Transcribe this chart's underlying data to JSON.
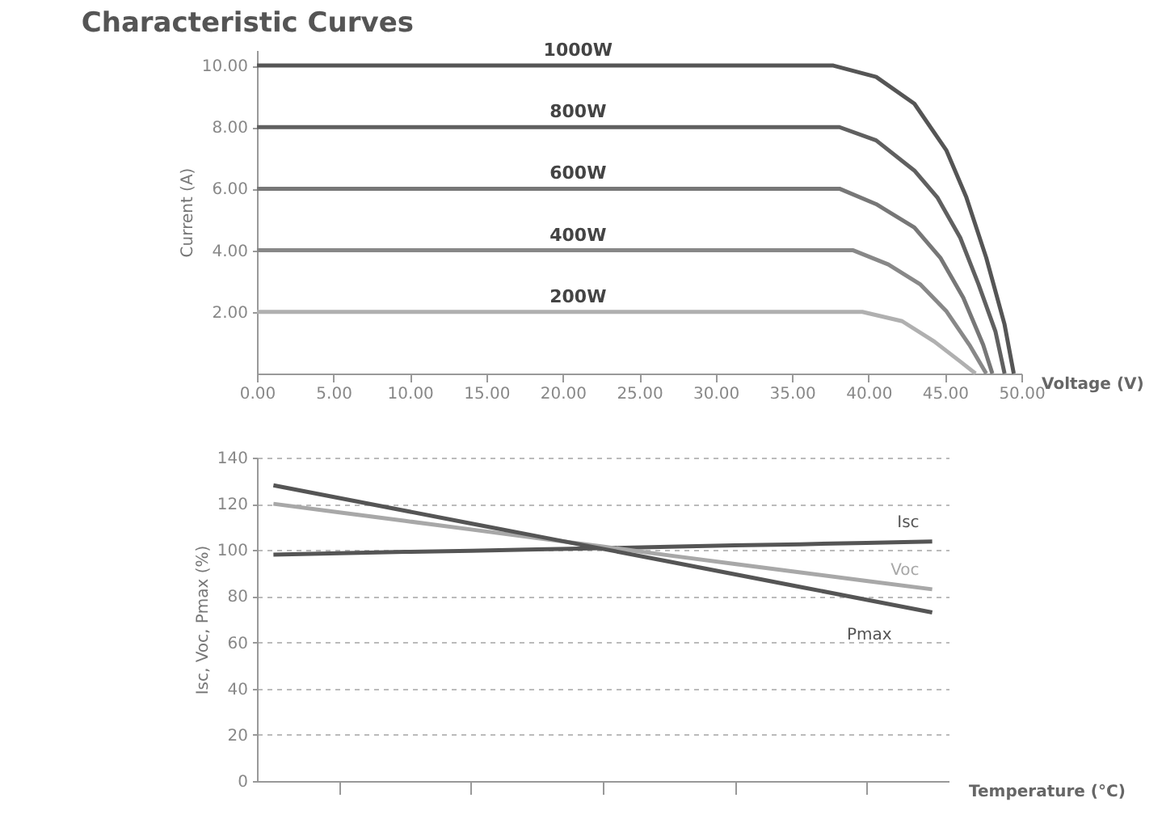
{
  "chart_data": [
    {
      "type": "line",
      "title": "Characteristic Curves",
      "xlabel": "Voltage (V)",
      "ylabel": "Current (A)",
      "xlim": [
        0,
        50
      ],
      "ylim": [
        0,
        10.5
      ],
      "xticks": [
        {
          "value": 0,
          "label": "0.00"
        },
        {
          "value": 5,
          "label": "5.00"
        },
        {
          "value": 10,
          "label": "10.00"
        },
        {
          "value": 15,
          "label": "15.00"
        },
        {
          "value": 20,
          "label": "20.00"
        },
        {
          "value": 25,
          "label": "25.00"
        },
        {
          "value": 30,
          "label": "30.00"
        },
        {
          "value": 35,
          "label": "35.00"
        },
        {
          "value": 40,
          "label": "40.00"
        },
        {
          "value": 45,
          "label": "45.00"
        },
        {
          "value": 50,
          "label": "50.00"
        }
      ],
      "yticks": [
        {
          "value": 2,
          "label": "2.00"
        },
        {
          "value": 4,
          "label": "4.00"
        },
        {
          "value": 6,
          "label": "6.00"
        },
        {
          "value": 8,
          "label": "8.00"
        },
        {
          "value": 10,
          "label": "10.00"
        }
      ],
      "grid": false,
      "legend": false,
      "marker": "none",
      "line_style": "solid",
      "series": [
        {
          "name": "1000W",
          "color": "#555555",
          "x": [
            0,
            37.7,
            40.5,
            43,
            45.1,
            46.4,
            47.7,
            48.9,
            49.5
          ],
          "values": [
            10,
            10,
            9.63,
            8.76,
            7.24,
            5.72,
            3.76,
            1.59,
            0
          ]
        },
        {
          "name": "800W",
          "color": "#606060",
          "x": [
            0,
            38.1,
            40.5,
            43,
            44.5,
            46,
            47.2,
            48.3,
            48.9
          ],
          "values": [
            8,
            8,
            7.57,
            6.59,
            5.72,
            4.41,
            2.89,
            1.37,
            0
          ]
        },
        {
          "name": "600W",
          "color": "#777777",
          "x": [
            0,
            38.1,
            40.5,
            43,
            44.7,
            46.2,
            47.5,
            48.1
          ],
          "values": [
            6,
            6,
            5.5,
            4.74,
            3.76,
            2.46,
            0.93,
            0
          ]
        },
        {
          "name": "400W",
          "color": "#888888",
          "x": [
            0,
            39,
            41.3,
            43.4,
            45.1,
            46.6,
            47.7
          ],
          "values": [
            4,
            4,
            3.54,
            2.89,
            2.02,
            0.93,
            0
          ]
        },
        {
          "name": "200W",
          "color": "#b0b0b0",
          "x": [
            0,
            39.6,
            42.2,
            44.3,
            46,
            47
          ],
          "values": [
            2,
            2,
            1.7,
            1.04,
            0.39,
            0
          ]
        }
      ]
    },
    {
      "type": "line",
      "xlabel": "Temperature (°C)",
      "ylabel": "Isc, Voc, Pmax (%)",
      "ylim": [
        0,
        140
      ],
      "yticks": [
        0,
        20,
        40,
        60,
        80,
        100,
        120,
        140
      ],
      "categories": [
        null,
        null,
        null,
        null,
        null,
        null,
        null,
        null,
        null,
        null,
        null
      ],
      "tick_labels": "y",
      "grid": "y",
      "legend": false,
      "marker": "none",
      "line_style": "solid",
      "series": [
        {
          "name": "Isc",
          "color": "#555555",
          "values": [
            98,
            98.6,
            99.2,
            99.7,
            100.3,
            100.8,
            101.4,
            102,
            102.5,
            103.1,
            103.7
          ]
        },
        {
          "name": "Voc",
          "color": "#a8a8a8",
          "values": [
            120,
            116.3,
            112.6,
            108.9,
            105.2,
            101.5,
            97.7,
            94,
            90.3,
            86.6,
            83
          ]
        },
        {
          "name": "Pmax",
          "color": "#555555",
          "values": [
            128,
            122.5,
            117,
            111.5,
            106,
            100.5,
            95,
            89.5,
            84,
            78.5,
            73
          ]
        }
      ]
    }
  ]
}
